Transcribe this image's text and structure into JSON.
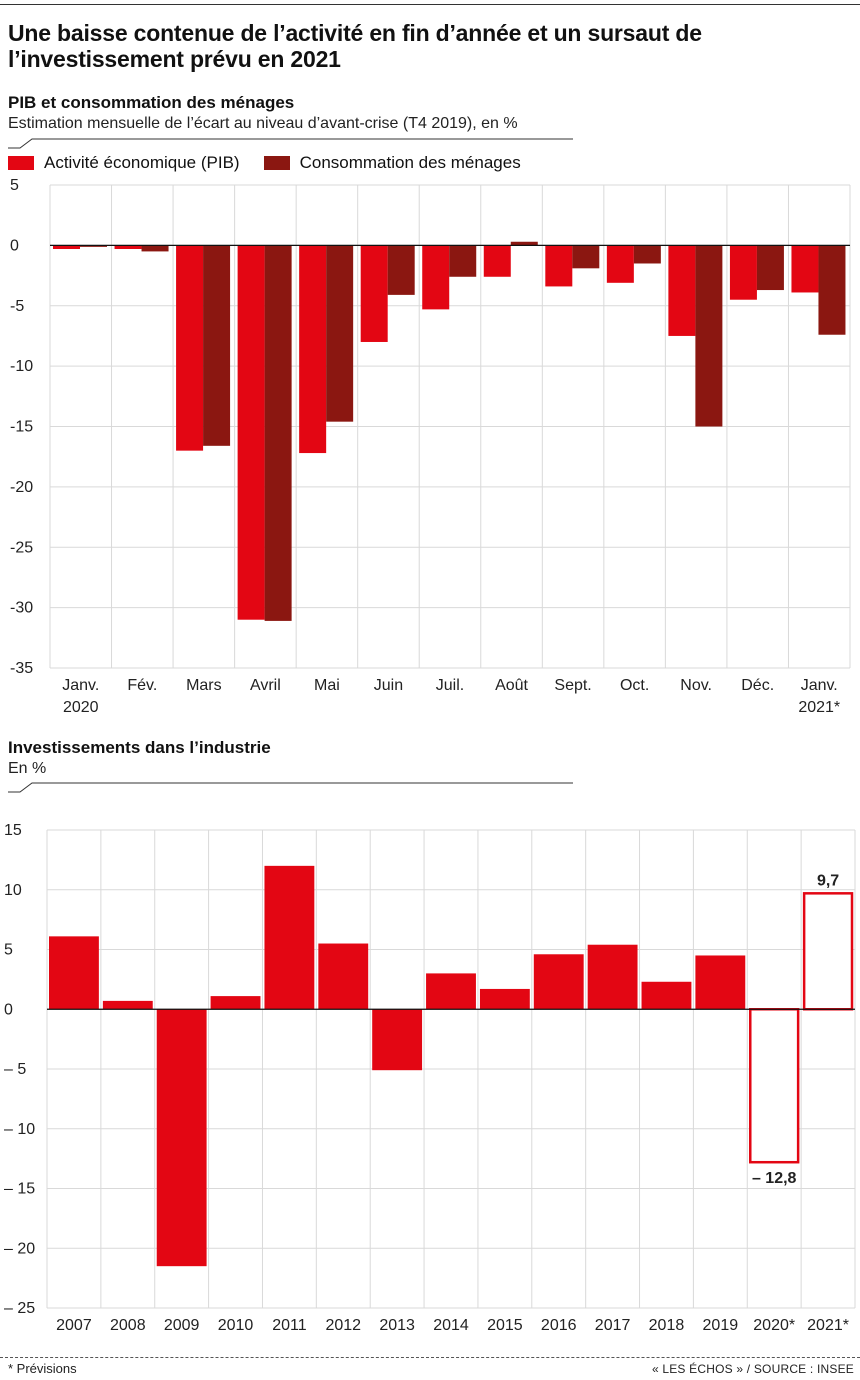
{
  "title": "Une baisse contenue de l’activité en fin d’année et un sursaut de l’investissement prévu en 2021",
  "colors": {
    "pib": "#e30613",
    "conso": "#8b1711",
    "invest": "#e30613",
    "grid": "#d9d9d9"
  },
  "chart1": {
    "section_title": "PIB et consommation des ménages",
    "subtitle": "Estimation mensuelle de l’écart au niveau d’avant-crise (T4 2019), en %",
    "legend": [
      "Activité économique (PIB)",
      "Consommation des ménages"
    ]
  },
  "chart2": {
    "section_title": "Investissements dans l’industrie",
    "subtitle": "En %"
  },
  "footer": {
    "note": "* Prévisions",
    "source": "« LES ÉCHOS » / SOURCE : INSEE"
  },
  "chart_data": [
    {
      "type": "bar",
      "title": "PIB et consommation des ménages",
      "subtitle": "Estimation mensuelle de l’écart au niveau d’avant-crise (T4 2019), en %",
      "categories": [
        [
          "Janv.",
          "2020"
        ],
        [
          "Fév."
        ],
        [
          "Mars"
        ],
        [
          "Avril"
        ],
        [
          "Mai"
        ],
        [
          "Juin"
        ],
        [
          "Juil."
        ],
        [
          "Août"
        ],
        [
          "Sept."
        ],
        [
          "Oct."
        ],
        [
          "Nov."
        ],
        [
          "Déc."
        ],
        [
          "Janv.",
          "2021*"
        ]
      ],
      "series": [
        {
          "name": "Activité économique (PIB)",
          "values": [
            -0.3,
            -0.3,
            -17.0,
            -31.0,
            -17.2,
            -8.0,
            -5.3,
            -2.6,
            -3.4,
            -3.1,
            -7.5,
            -4.5,
            -3.9
          ]
        },
        {
          "name": "Consommation des ménages",
          "values": [
            -0.1,
            -0.5,
            -16.6,
            -31.1,
            -14.6,
            -4.1,
            -2.6,
            0.3,
            -1.9,
            -1.5,
            -15.0,
            -3.7,
            -7.4
          ]
        }
      ],
      "ylim": [
        -35,
        5
      ],
      "yticks": [
        5,
        0,
        -5,
        -10,
        -15,
        -20,
        -25,
        -30,
        -35
      ],
      "ytick_labels": [
        "5",
        "0",
        "-5",
        "-10",
        "-15",
        "-20",
        "-25",
        "-30",
        "-35"
      ],
      "grid": true,
      "legend_position": "top-left"
    },
    {
      "type": "bar",
      "title": "Investissements dans l’industrie",
      "subtitle": "En %",
      "categories": [
        "2007",
        "2008",
        "2009",
        "2010",
        "2011",
        "2012",
        "2013",
        "2014",
        "2015",
        "2016",
        "2017",
        "2018",
        "2019",
        "2020*",
        "2021*"
      ],
      "values": [
        6.1,
        0.7,
        -21.5,
        1.1,
        12.0,
        5.5,
        -5.1,
        3.0,
        1.7,
        4.6,
        5.4,
        2.3,
        4.5,
        -12.8,
        9.7
      ],
      "forecast": [
        false,
        false,
        false,
        false,
        false,
        false,
        false,
        false,
        false,
        false,
        false,
        false,
        false,
        true,
        true
      ],
      "data_labels": [
        "",
        "",
        "",
        "",
        "",
        "",
        "",
        "",
        "",
        "",
        "",
        "",
        "",
        "– 12,8",
        "9,7"
      ],
      "ylim": [
        -25,
        15
      ],
      "yticks": [
        15,
        10,
        5,
        0,
        -5,
        -10,
        -15,
        -20,
        -25
      ],
      "ytick_labels": [
        "15",
        "10",
        "5",
        "0",
        "– 5",
        "– 10",
        "– 15",
        "– 20",
        "– 25"
      ],
      "grid": true
    }
  ]
}
